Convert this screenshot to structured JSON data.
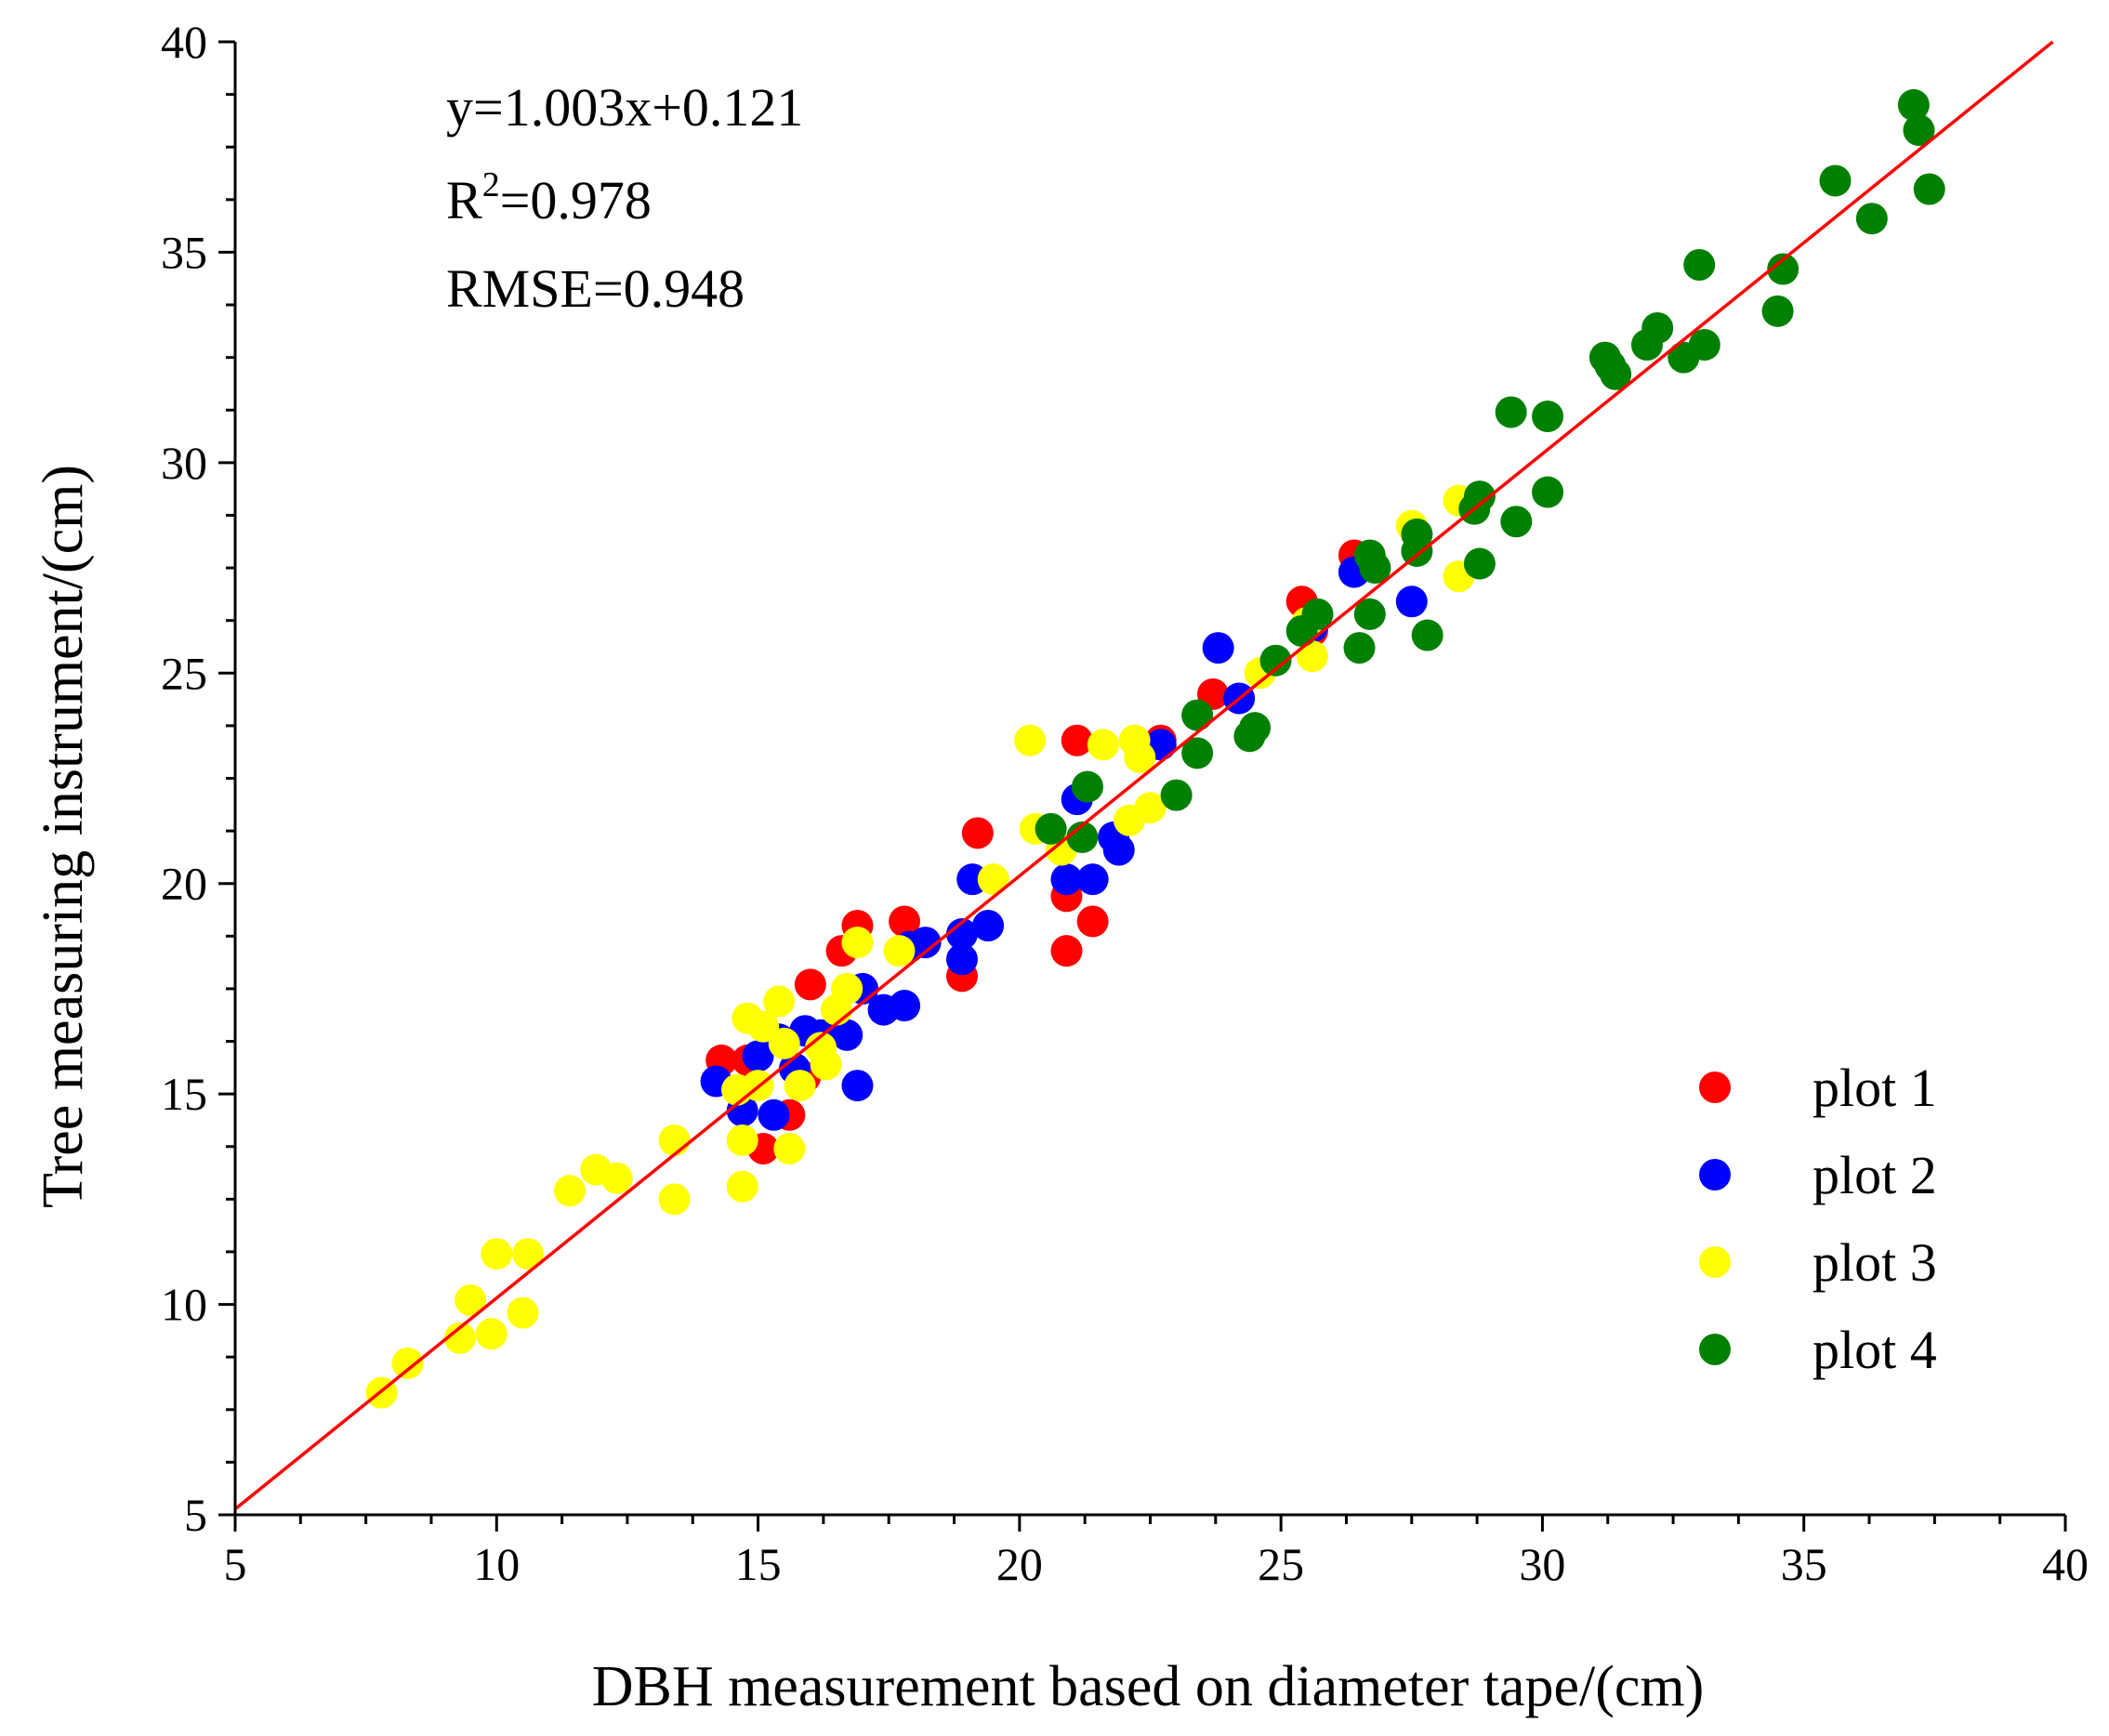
{
  "chart_data": {
    "type": "scatter",
    "xlabel": "DBH measurement based on diameter tape/(cm)",
    "ylabel": "Tree measuring instrument/(cm)",
    "xlim": [
      5,
      40
    ],
    "ylim": [
      5,
      40
    ],
    "xticks": [
      5,
      10,
      15,
      20,
      25,
      30,
      35,
      40
    ],
    "yticks": [
      5,
      10,
      15,
      20,
      25,
      30,
      35,
      40
    ],
    "annotations": {
      "equation": "y=1.003x+0.121",
      "r2_prefix": "R",
      "r2_sup": "2",
      "r2_value": "=0.978",
      "rmse": "RMSE=0.948"
    },
    "fit": {
      "slope": 1.003,
      "intercept": 0.121,
      "color": "#ff0000"
    },
    "legend_position": "bottom-right",
    "series": [
      {
        "name": "plot 1",
        "color": "#ff0000",
        "points": [
          [
            14.3,
            15.8
          ],
          [
            14.8,
            15.8
          ],
          [
            15.1,
            13.7
          ],
          [
            15.6,
            14.5
          ],
          [
            15.9,
            15.4
          ],
          [
            16.0,
            17.6
          ],
          [
            16.6,
            18.4
          ],
          [
            16.9,
            19.0
          ],
          [
            17.8,
            19.1
          ],
          [
            18.9,
            17.8
          ],
          [
            19.2,
            21.2
          ],
          [
            20.9,
            18.4
          ],
          [
            20.9,
            19.7
          ],
          [
            21.1,
            23.4
          ],
          [
            21.4,
            19.1
          ],
          [
            22.7,
            23.4
          ],
          [
            23.7,
            24.5
          ],
          [
            25.4,
            26.7
          ],
          [
            26.4,
            27.8
          ],
          [
            25.6,
            26.0
          ]
        ]
      },
      {
        "name": "plot 2",
        "color": "#0000ff",
        "points": [
          [
            14.2,
            15.3
          ],
          [
            14.7,
            14.6
          ],
          [
            15.0,
            15.9
          ],
          [
            15.3,
            14.5
          ],
          [
            15.4,
            16.3
          ],
          [
            15.7,
            15.6
          ],
          [
            15.9,
            16.5
          ],
          [
            16.2,
            16.4
          ],
          [
            16.7,
            16.4
          ],
          [
            16.9,
            15.2
          ],
          [
            17.0,
            17.5
          ],
          [
            17.4,
            17.0
          ],
          [
            17.8,
            17.1
          ],
          [
            17.9,
            18.5
          ],
          [
            18.2,
            18.6
          ],
          [
            18.9,
            18.8
          ],
          [
            18.9,
            18.2
          ],
          [
            19.1,
            20.1
          ],
          [
            19.4,
            19.0
          ],
          [
            20.9,
            20.1
          ],
          [
            21.1,
            22.0
          ],
          [
            21.4,
            20.1
          ],
          [
            21.8,
            21.1
          ],
          [
            21.9,
            20.8
          ],
          [
            22.7,
            23.3
          ],
          [
            23.8,
            25.6
          ],
          [
            24.2,
            24.4
          ],
          [
            25.6,
            26.1
          ],
          [
            26.4,
            27.4
          ],
          [
            27.5,
            26.7
          ],
          [
            26.7,
            27.6
          ]
        ]
      },
      {
        "name": "plot 3",
        "color": "#ffff00",
        "points": [
          [
            7.8,
            7.9
          ],
          [
            8.3,
            8.6
          ],
          [
            9.3,
            9.2
          ],
          [
            9.5,
            10.1
          ],
          [
            9.9,
            9.3
          ],
          [
            10.0,
            11.2
          ],
          [
            10.5,
            9.8
          ],
          [
            10.6,
            11.2
          ],
          [
            11.4,
            12.7
          ],
          [
            11.9,
            13.2
          ],
          [
            12.3,
            13.0
          ],
          [
            13.4,
            12.5
          ],
          [
            13.4,
            13.9
          ],
          [
            14.6,
            15.1
          ],
          [
            14.7,
            13.9
          ],
          [
            14.7,
            12.8
          ],
          [
            14.8,
            16.8
          ],
          [
            15.0,
            15.2
          ],
          [
            15.1,
            16.6
          ],
          [
            15.4,
            17.2
          ],
          [
            15.5,
            16.2
          ],
          [
            15.6,
            13.7
          ],
          [
            15.8,
            15.2
          ],
          [
            16.2,
            16.1
          ],
          [
            16.3,
            15.7
          ],
          [
            16.5,
            17.0
          ],
          [
            16.7,
            17.5
          ],
          [
            16.9,
            18.6
          ],
          [
            17.7,
            18.4
          ],
          [
            19.5,
            20.1
          ],
          [
            20.2,
            23.4
          ],
          [
            20.3,
            21.3
          ],
          [
            20.8,
            20.8
          ],
          [
            21.6,
            23.3
          ],
          [
            22.1,
            21.5
          ],
          [
            22.2,
            23.4
          ],
          [
            22.3,
            23.0
          ],
          [
            22.5,
            21.8
          ],
          [
            24.6,
            25.0
          ],
          [
            25.6,
            25.4
          ],
          [
            25.5,
            26.2
          ],
          [
            27.5,
            28.5
          ],
          [
            28.4,
            29.1
          ],
          [
            28.4,
            27.3
          ]
        ]
      },
      {
        "name": "plot 4",
        "color": "#008000",
        "points": [
          [
            20.6,
            21.3
          ],
          [
            21.2,
            21.1
          ],
          [
            21.3,
            22.3
          ],
          [
            23.0,
            22.1
          ],
          [
            23.4,
            24.0
          ],
          [
            23.4,
            23.1
          ],
          [
            24.4,
            23.5
          ],
          [
            24.5,
            23.7
          ],
          [
            24.9,
            25.3
          ],
          [
            25.4,
            26.0
          ],
          [
            25.7,
            26.4
          ],
          [
            26.5,
            25.6
          ],
          [
            26.7,
            27.8
          ],
          [
            26.7,
            26.4
          ],
          [
            26.8,
            27.5
          ],
          [
            27.6,
            28.3
          ],
          [
            27.6,
            27.9
          ],
          [
            27.8,
            25.9
          ],
          [
            28.7,
            28.9
          ],
          [
            28.8,
            29.2
          ],
          [
            28.8,
            27.6
          ],
          [
            29.4,
            31.2
          ],
          [
            29.5,
            28.6
          ],
          [
            30.1,
            31.1
          ],
          [
            30.1,
            29.3
          ],
          [
            31.2,
            32.5
          ],
          [
            31.3,
            32.3
          ],
          [
            31.4,
            32.1
          ],
          [
            32.0,
            32.8
          ],
          [
            32.2,
            33.2
          ],
          [
            32.7,
            32.5
          ],
          [
            33.0,
            34.7
          ],
          [
            33.1,
            32.8
          ],
          [
            34.5,
            33.6
          ],
          [
            34.6,
            34.6
          ],
          [
            35.6,
            36.7
          ],
          [
            36.3,
            35.8
          ],
          [
            37.1,
            38.5
          ],
          [
            37.2,
            37.9
          ],
          [
            37.4,
            36.5
          ]
        ]
      }
    ]
  }
}
